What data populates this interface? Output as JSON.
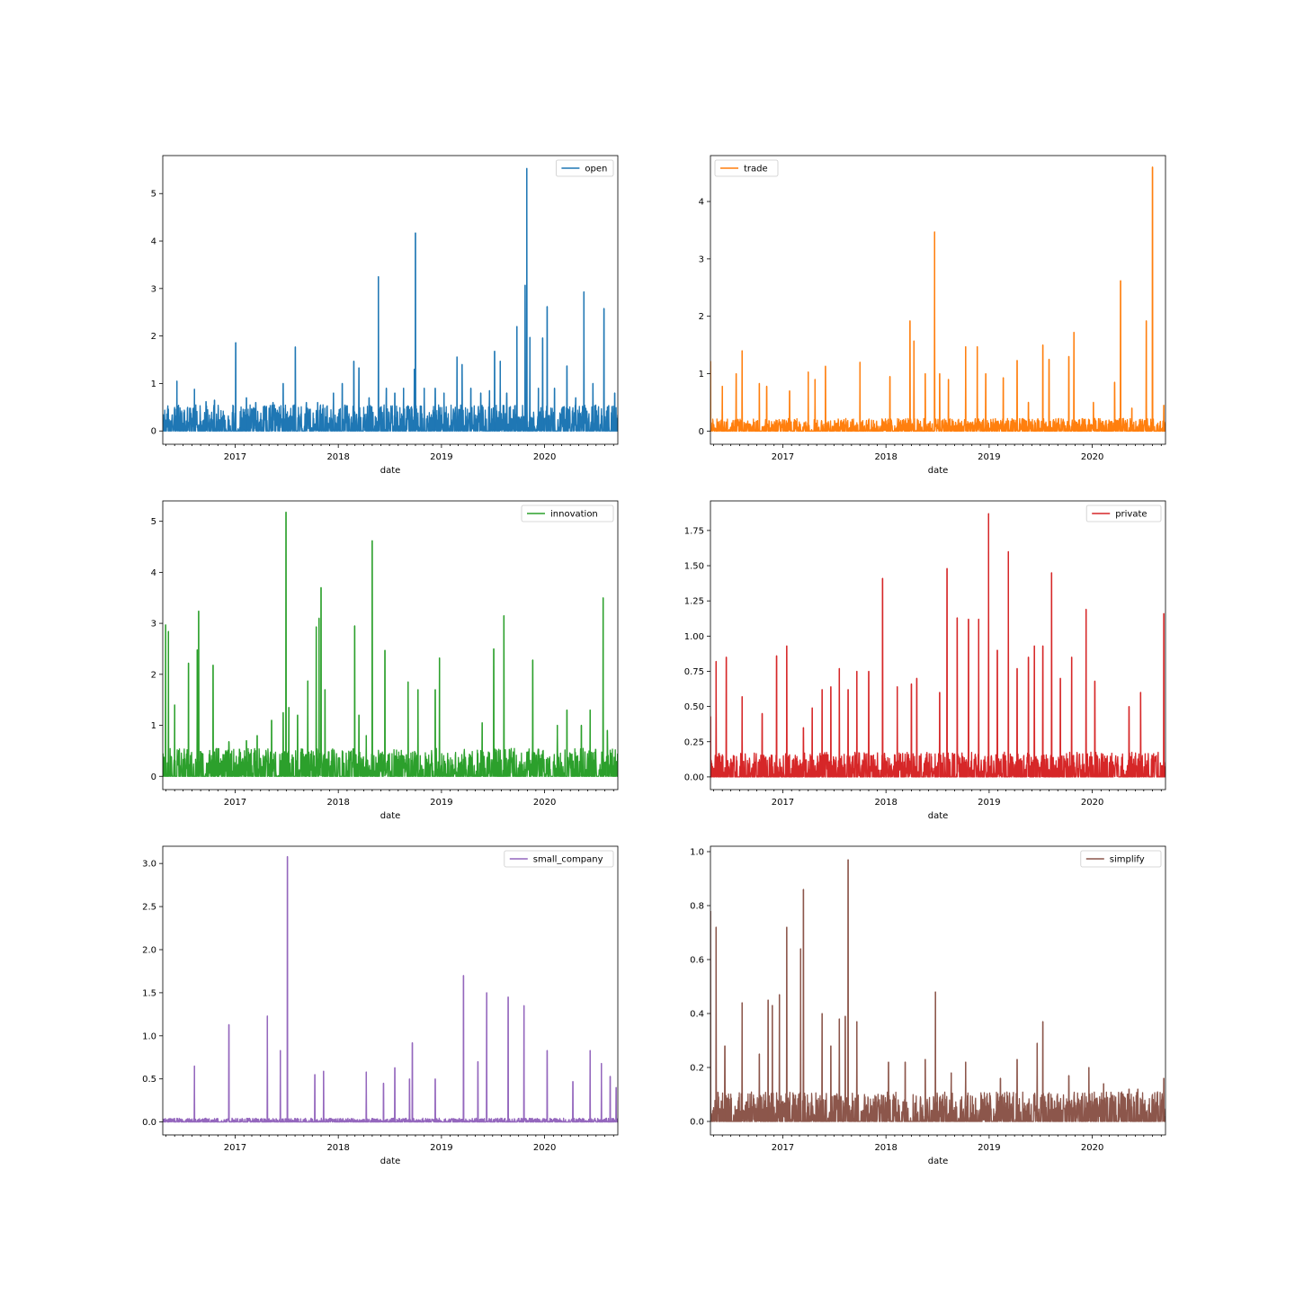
{
  "chart_data": [
    {
      "type": "line",
      "xlabel": "date",
      "x_ticks": [
        "2017",
        "2018",
        "2019",
        "2020"
      ],
      "y_ticks": [
        "0",
        "1",
        "2",
        "3",
        "4",
        "5"
      ],
      "ylim": [
        -0.28,
        5.8
      ],
      "legend": "top-right",
      "series": [
        {
          "name": "open",
          "color": "#1f77b4",
          "baseline": 0.25,
          "spikes": [
            [
              "2016-06-09",
              1.05
            ],
            [
              "2016-08-10",
              0.88
            ],
            [
              "2016-09-20",
              0.62
            ],
            [
              "2016-10-20",
              0.65
            ],
            [
              "2017-01-03",
              1.86
            ],
            [
              "2017-02-10",
              0.7
            ],
            [
              "2017-03-15",
              0.6
            ],
            [
              "2017-05-15",
              0.6
            ],
            [
              "2017-06-20",
              1.0
            ],
            [
              "2017-08-02",
              1.77
            ],
            [
              "2017-09-10",
              0.6
            ],
            [
              "2017-10-20",
              0.6
            ],
            [
              "2017-12-15",
              0.8
            ],
            [
              "2018-01-15",
              1.0
            ],
            [
              "2018-02-25",
              1.47
            ],
            [
              "2018-03-15",
              1.33
            ],
            [
              "2018-04-20",
              0.7
            ],
            [
              "2018-05-23",
              3.25
            ],
            [
              "2018-06-20",
              0.9
            ],
            [
              "2018-07-20",
              0.8
            ],
            [
              "2018-08-20",
              0.9
            ],
            [
              "2018-09-27",
              1.3
            ],
            [
              "2018-10-01",
              4.17
            ],
            [
              "2018-11-01",
              0.9
            ],
            [
              "2018-12-10",
              0.9
            ],
            [
              "2019-01-10",
              0.8
            ],
            [
              "2019-02-25",
              1.56
            ],
            [
              "2019-03-15",
              1.4
            ],
            [
              "2019-04-15",
              0.9
            ],
            [
              "2019-05-20",
              0.8
            ],
            [
              "2019-06-20",
              0.85
            ],
            [
              "2019-07-08",
              1.68
            ],
            [
              "2019-07-28",
              1.47
            ],
            [
              "2019-08-20",
              0.8
            ],
            [
              "2019-09-25",
              2.2
            ],
            [
              "2019-10-24",
              3.07
            ],
            [
              "2019-10-30",
              5.53
            ],
            [
              "2019-11-10",
              1.97
            ],
            [
              "2019-12-10",
              0.9
            ],
            [
              "2019-12-25",
              1.96
            ],
            [
              "2020-01-10",
              2.62
            ],
            [
              "2020-02-05",
              0.9
            ],
            [
              "2020-03-20",
              1.37
            ],
            [
              "2020-04-20",
              0.7
            ],
            [
              "2020-05-19",
              2.93
            ],
            [
              "2020-06-20",
              1.0
            ],
            [
              "2020-07-29",
              2.58
            ],
            [
              "2020-09-05",
              0.8
            ]
          ]
        }
      ]
    },
    {
      "type": "line",
      "xlabel": "date",
      "x_ticks": [
        "2017",
        "2018",
        "2019",
        "2020"
      ],
      "y_ticks": [
        "0",
        "1",
        "2",
        "3",
        "4"
      ],
      "ylim": [
        -0.23,
        4.8
      ],
      "legend": "top-left",
      "series": [
        {
          "name": "trade",
          "color": "#ff7f0e",
          "baseline": 0.1,
          "spikes": [
            [
              "2016-04-20",
              1.22
            ],
            [
              "2016-06-01",
              0.78
            ],
            [
              "2016-07-20",
              1.0
            ],
            [
              "2016-08-10",
              1.4
            ],
            [
              "2016-10-10",
              0.83
            ],
            [
              "2016-11-05",
              0.78
            ],
            [
              "2017-01-25",
              0.7
            ],
            [
              "2017-04-01",
              1.03
            ],
            [
              "2017-04-25",
              0.9
            ],
            [
              "2017-06-01",
              1.13
            ],
            [
              "2017-10-01",
              1.2
            ],
            [
              "2018-01-15",
              0.95
            ],
            [
              "2018-03-27",
              1.92
            ],
            [
              "2018-04-10",
              1.57
            ],
            [
              "2018-05-20",
              1.0
            ],
            [
              "2018-06-22",
              3.47
            ],
            [
              "2018-07-10",
              1.0
            ],
            [
              "2018-08-10",
              0.9
            ],
            [
              "2018-10-10",
              1.47
            ],
            [
              "2018-11-20",
              1.47
            ],
            [
              "2018-12-20",
              1.0
            ],
            [
              "2019-02-20",
              0.93
            ],
            [
              "2019-04-10",
              1.23
            ],
            [
              "2019-05-20",
              0.5
            ],
            [
              "2019-07-10",
              1.5
            ],
            [
              "2019-08-01",
              1.25
            ],
            [
              "2019-10-10",
              1.3
            ],
            [
              "2019-10-28",
              1.72
            ],
            [
              "2020-01-05",
              0.5
            ],
            [
              "2020-03-20",
              0.85
            ],
            [
              "2020-04-10",
              2.62
            ],
            [
              "2020-05-20",
              0.4
            ],
            [
              "2020-07-10",
              1.92
            ],
            [
              "2020-08-01",
              4.6
            ],
            [
              "2020-09-10",
              0.45
            ]
          ]
        }
      ]
    },
    {
      "type": "line",
      "xlabel": "date",
      "x_ticks": [
        "2017",
        "2018",
        "2019",
        "2020"
      ],
      "y_ticks": [
        "0",
        "1",
        "2",
        "3",
        "4",
        "5"
      ],
      "ylim": [
        -0.26,
        5.4
      ],
      "legend": "top-right",
      "series": [
        {
          "name": "innovation",
          "color": "#2ca02c",
          "baseline": 0.25,
          "spikes": [
            [
              "2016-04-15",
              2.33
            ],
            [
              "2016-04-30",
              2.97
            ],
            [
              "2016-05-10",
              2.84
            ],
            [
              "2016-06-01",
              1.4
            ],
            [
              "2016-07-20",
              2.22
            ],
            [
              "2016-08-20",
              2.48
            ],
            [
              "2016-08-25",
              3.24
            ],
            [
              "2016-10-15",
              2.18
            ],
            [
              "2016-12-10",
              0.68
            ],
            [
              "2017-02-10",
              0.7
            ],
            [
              "2017-03-20",
              0.8
            ],
            [
              "2017-05-10",
              1.1
            ],
            [
              "2017-06-20",
              1.25
            ],
            [
              "2017-06-30",
              5.18
            ],
            [
              "2017-07-10",
              1.35
            ],
            [
              "2017-08-10",
              1.2
            ],
            [
              "2017-09-15",
              1.87
            ],
            [
              "2017-10-15",
              2.93
            ],
            [
              "2017-10-25",
              3.1
            ],
            [
              "2017-11-01",
              3.7
            ],
            [
              "2017-11-15",
              1.7
            ],
            [
              "2018-02-28",
              2.95
            ],
            [
              "2018-03-15",
              1.2
            ],
            [
              "2018-04-10",
              0.8
            ],
            [
              "2018-05-01",
              4.62
            ],
            [
              "2018-06-15",
              2.47
            ],
            [
              "2018-09-05",
              1.85
            ],
            [
              "2018-10-10",
              1.7
            ],
            [
              "2018-12-10",
              1.7
            ],
            [
              "2018-12-25",
              2.32
            ],
            [
              "2019-05-25",
              1.05
            ],
            [
              "2019-07-05",
              2.5
            ],
            [
              "2019-08-10",
              3.15
            ],
            [
              "2019-11-20",
              2.28
            ],
            [
              "2020-02-15",
              1.0
            ],
            [
              "2020-03-20",
              1.3
            ],
            [
              "2020-05-10",
              1.0
            ],
            [
              "2020-06-10",
              1.3
            ],
            [
              "2020-07-26",
              3.5
            ],
            [
              "2020-08-10",
              0.9
            ]
          ]
        }
      ]
    },
    {
      "type": "line",
      "xlabel": "date",
      "x_ticks": [
        "2017",
        "2018",
        "2019",
        "2020"
      ],
      "y_ticks": [
        "0.00",
        "0.25",
        "0.50",
        "0.75",
        "1.00",
        "1.25",
        "1.50",
        "1.75"
      ],
      "ylim": [
        -0.09,
        1.96
      ],
      "legend": "top-right",
      "series": [
        {
          "name": "private",
          "color": "#d62728",
          "baseline": 0.08,
          "spikes": [
            [
              "2016-04-20",
              0.43
            ],
            [
              "2016-05-10",
              0.82
            ],
            [
              "2016-06-15",
              0.85
            ],
            [
              "2016-08-10",
              0.57
            ],
            [
              "2016-10-20",
              0.45
            ],
            [
              "2016-12-10",
              0.86
            ],
            [
              "2017-01-15",
              0.93
            ],
            [
              "2017-03-15",
              0.35
            ],
            [
              "2017-04-15",
              0.49
            ],
            [
              "2017-05-20",
              0.62
            ],
            [
              "2017-06-20",
              0.64
            ],
            [
              "2017-07-20",
              0.77
            ],
            [
              "2017-08-20",
              0.62
            ],
            [
              "2017-09-20",
              0.75
            ],
            [
              "2017-11-01",
              0.75
            ],
            [
              "2017-12-20",
              1.41
            ],
            [
              "2018-02-10",
              0.64
            ],
            [
              "2018-04-01",
              0.66
            ],
            [
              "2018-04-20",
              0.7
            ],
            [
              "2018-07-10",
              0.6
            ],
            [
              "2018-08-05",
              1.48
            ],
            [
              "2018-09-10",
              1.13
            ],
            [
              "2018-10-20",
              1.12
            ],
            [
              "2018-11-25",
              1.12
            ],
            [
              "2018-12-30",
              1.87
            ],
            [
              "2019-01-30",
              0.9
            ],
            [
              "2019-03-10",
              1.6
            ],
            [
              "2019-04-10",
              0.77
            ],
            [
              "2019-05-20",
              0.85
            ],
            [
              "2019-06-10",
              0.93
            ],
            [
              "2019-07-10",
              0.93
            ],
            [
              "2019-08-10",
              1.45
            ],
            [
              "2019-09-10",
              0.7
            ],
            [
              "2019-10-20",
              0.85
            ],
            [
              "2019-12-10",
              1.19
            ],
            [
              "2020-01-10",
              0.68
            ],
            [
              "2020-05-10",
              0.5
            ],
            [
              "2020-06-20",
              0.6
            ],
            [
              "2020-09-10",
              1.16
            ]
          ]
        }
      ]
    },
    {
      "type": "line",
      "xlabel": "date",
      "x_ticks": [
        "2017",
        "2018",
        "2019",
        "2020"
      ],
      "y_ticks": [
        "0.0",
        "0.5",
        "1.0",
        "1.5",
        "2.0",
        "2.5",
        "3.0"
      ],
      "ylim": [
        -0.15,
        3.2
      ],
      "legend": "top-right",
      "series": [
        {
          "name": "small_company",
          "color": "#9467bd",
          "baseline": 0.02,
          "spikes": [
            [
              "2016-08-10",
              0.65
            ],
            [
              "2016-12-10",
              1.13
            ],
            [
              "2017-04-25",
              1.23
            ],
            [
              "2017-06-10",
              0.83
            ],
            [
              "2017-07-05",
              3.08
            ],
            [
              "2017-10-10",
              0.55
            ],
            [
              "2017-11-10",
              0.59
            ],
            [
              "2018-04-10",
              0.58
            ],
            [
              "2018-06-10",
              0.45
            ],
            [
              "2018-07-20",
              0.63
            ],
            [
              "2018-09-10",
              0.5
            ],
            [
              "2018-09-20",
              0.92
            ],
            [
              "2018-12-10",
              0.5
            ],
            [
              "2019-03-20",
              1.7
            ],
            [
              "2019-05-10",
              0.7
            ],
            [
              "2019-06-10",
              1.5
            ],
            [
              "2019-08-25",
              1.45
            ],
            [
              "2019-10-20",
              1.35
            ],
            [
              "2020-01-10",
              0.83
            ],
            [
              "2020-04-10",
              0.47
            ],
            [
              "2020-06-10",
              0.83
            ],
            [
              "2020-07-20",
              0.68
            ],
            [
              "2020-08-20",
              0.53
            ],
            [
              "2020-09-10",
              0.4
            ]
          ]
        }
      ]
    },
    {
      "type": "line",
      "xlabel": "date",
      "x_ticks": [
        "2017",
        "2018",
        "2019",
        "2020"
      ],
      "y_ticks": [
        "0.0",
        "0.2",
        "0.4",
        "0.6",
        "0.8",
        "1.0"
      ],
      "ylim": [
        -0.05,
        1.02
      ],
      "legend": "top-right",
      "series": [
        {
          "name": "simplify",
          "color": "#8c564b",
          "baseline": 0.05,
          "spikes": [
            [
              "2016-04-20",
              0.78
            ],
            [
              "2016-05-10",
              0.72
            ],
            [
              "2016-06-10",
              0.28
            ],
            [
              "2016-08-10",
              0.44
            ],
            [
              "2016-10-10",
              0.25
            ],
            [
              "2016-11-10",
              0.45
            ],
            [
              "2016-11-25",
              0.43
            ],
            [
              "2016-12-20",
              0.47
            ],
            [
              "2017-01-15",
              0.72
            ],
            [
              "2017-03-05",
              0.64
            ],
            [
              "2017-03-15",
              0.86
            ],
            [
              "2017-05-20",
              0.4
            ],
            [
              "2017-06-20",
              0.28
            ],
            [
              "2017-07-20",
              0.38
            ],
            [
              "2017-08-10",
              0.39
            ],
            [
              "2017-08-20",
              0.97
            ],
            [
              "2017-09-20",
              0.37
            ],
            [
              "2018-01-10",
              0.22
            ],
            [
              "2018-03-10",
              0.22
            ],
            [
              "2018-05-20",
              0.23
            ],
            [
              "2018-06-25",
              0.48
            ],
            [
              "2018-08-20",
              0.18
            ],
            [
              "2018-10-10",
              0.22
            ],
            [
              "2019-02-10",
              0.16
            ],
            [
              "2019-04-10",
              0.23
            ],
            [
              "2019-06-20",
              0.29
            ],
            [
              "2019-07-10",
              0.37
            ],
            [
              "2019-10-10",
              0.17
            ],
            [
              "2019-12-20",
              0.2
            ],
            [
              "2020-02-10",
              0.14
            ],
            [
              "2020-05-10",
              0.12
            ],
            [
              "2020-06-10",
              0.12
            ],
            [
              "2020-09-10",
              0.16
            ]
          ]
        }
      ]
    }
  ]
}
